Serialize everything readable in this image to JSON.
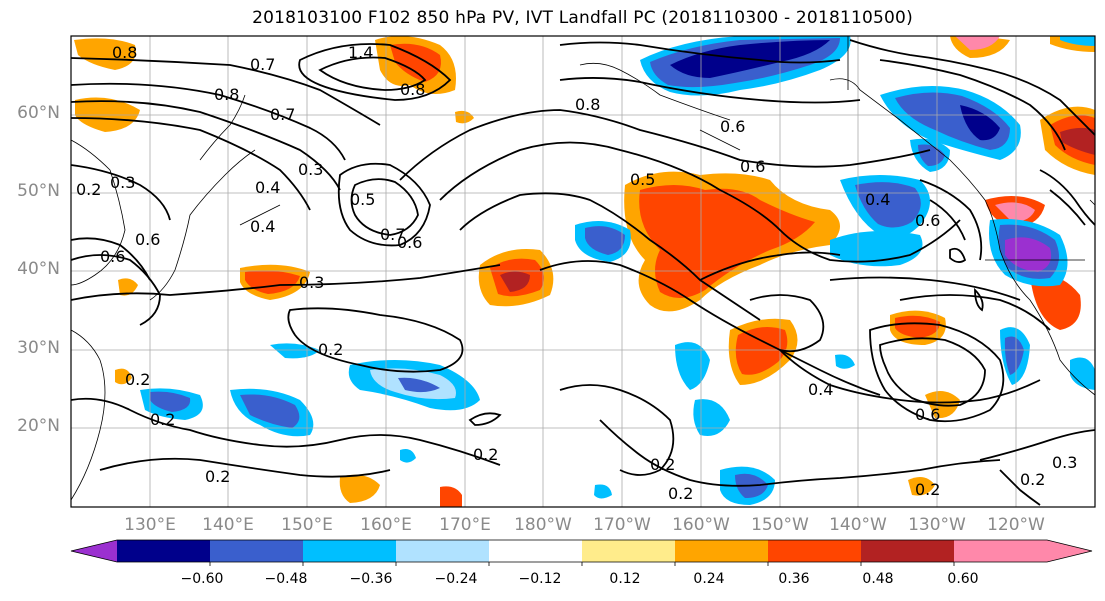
{
  "title": "2018103100 F102 850 hPa PV, IVT Landfall PC (2018110300 - 2018110500)",
  "lat_labels": [
    "60°N",
    "50°N",
    "40°N",
    "30°N",
    "20°N"
  ],
  "lon_labels": [
    "130°E",
    "140°E",
    "150°E",
    "160°E",
    "170°E",
    "180°W",
    "170°W",
    "160°W",
    "150°W",
    "140°W",
    "130°W",
    "120°W"
  ],
  "contour_labels": [
    "0.8",
    "0.7",
    "1.4",
    "0.8",
    "0.8",
    "0.7",
    "0.8",
    "0.6",
    "0.3",
    "0.4",
    "0.2",
    "0.3",
    "0.6",
    "0.6",
    "0.4",
    "0.5",
    "0.7",
    "0.6",
    "0.3",
    "0.5",
    "0.6",
    "0.4",
    "0.6",
    "0.2",
    "0.2",
    "0.2",
    "0.2",
    "0.4",
    "0.6",
    "0.2",
    "0.2",
    "0.2",
    "0.2",
    "0.3",
    "0.2"
  ],
  "colorbar": {
    "ticks": [
      "−0.60",
      "−0.48",
      "−0.36",
      "−0.24",
      "−0.12",
      "0.12",
      "0.24",
      "0.36",
      "0.48",
      "0.60"
    ],
    "colors": [
      "#9b30d0",
      "#00008b",
      "#3a5fcd",
      "#00bfff",
      "#b0e2ff",
      "#ffffff",
      "#ffec8b",
      "#ffa500",
      "#ff4500",
      "#b22222",
      "#ff88aa",
      "#ff88aa"
    ]
  }
}
